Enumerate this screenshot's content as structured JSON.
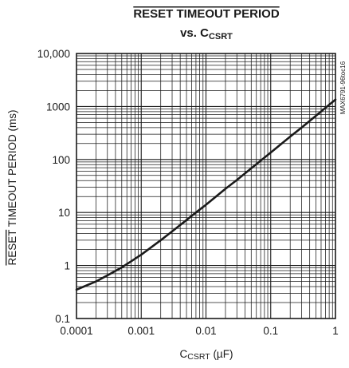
{
  "chart_data": {
    "type": "line",
    "title": {
      "line1": "RESET TIMEOUT PERIOD",
      "line2_prefix": "vs. C",
      "line2_sub": "CSRT"
    },
    "xlabel": {
      "prefix": "C",
      "sub": "CSRT",
      "suffix": " (µF)"
    },
    "ylabel": {
      "overline": "RESET",
      "rest": " TIMEOUT PERIOD (ms)"
    },
    "x_scale": "log",
    "y_scale": "log",
    "xlim": [
      0.0001,
      1
    ],
    "ylim": [
      0.1,
      10000
    ],
    "x_ticks": [
      {
        "value": 0.0001,
        "label": "0.0001"
      },
      {
        "value": 0.001,
        "label": "0.001"
      },
      {
        "value": 0.01,
        "label": "0.01"
      },
      {
        "value": 0.1,
        "label": "0.1"
      },
      {
        "value": 1,
        "label": "1"
      }
    ],
    "y_ticks": [
      {
        "value": 0.1,
        "label": "0.1"
      },
      {
        "value": 1,
        "label": "1"
      },
      {
        "value": 10,
        "label": "10"
      },
      {
        "value": 100,
        "label": "100"
      },
      {
        "value": 1000,
        "label": "1000"
      },
      {
        "value": 10000,
        "label": "10,000"
      }
    ],
    "grid": true,
    "side_note": "MAX6791-96toc16",
    "series": [
      {
        "x": [
          0.0001,
          0.0002,
          0.0003,
          0.0005,
          0.0007,
          0.001,
          0.002,
          0.003,
          0.005,
          0.007,
          0.01,
          0.02,
          0.03,
          0.05,
          0.07,
          0.1,
          0.2,
          0.3,
          0.5,
          0.7,
          1
        ],
        "y": [
          0.35,
          0.5,
          0.65,
          0.92,
          1.2,
          1.6,
          3.0,
          4.4,
          7.2,
          10,
          14,
          28,
          41,
          68,
          95,
          135,
          270,
          400,
          670,
          940,
          1350
        ]
      }
    ]
  }
}
